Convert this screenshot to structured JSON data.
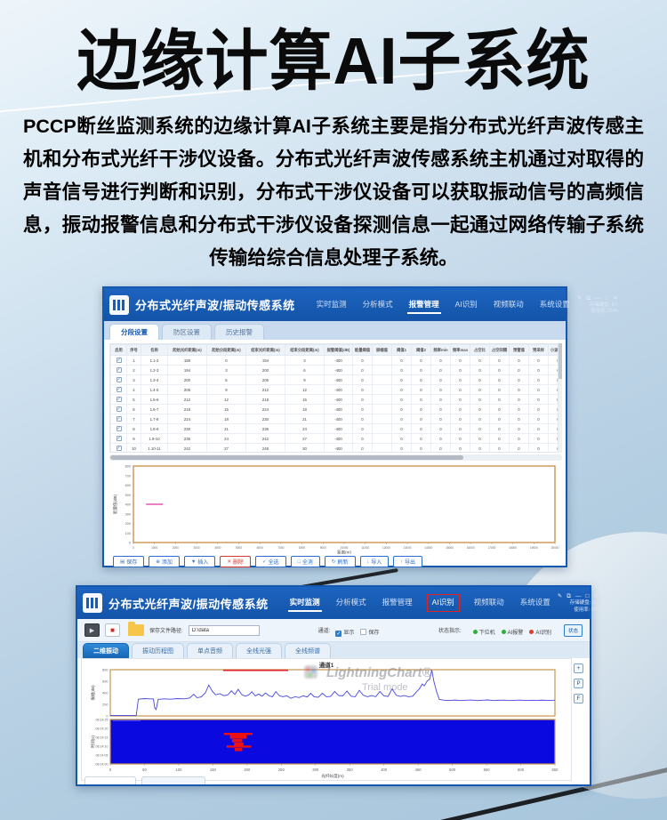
{
  "page": {
    "title": "边缘计算AI子系统",
    "paragraph": "PCCP断丝监测系统的边缘计算AI子系统主要是指分布式光纤声波传感主机和分布式光纤干涉仪设备。分布式光纤声波传感系统主机通过对取得的声音信号进行判断和识别，分布式干涉仪设备可以获取振动信号的高频信息，振动报警信息和分布式干涉仪设备探测信息一起通过网络传输子系统传输给综合信息处理子系统。"
  },
  "window_controls": [
    "✎",
    "⧉",
    "—",
    "□",
    "✕"
  ],
  "window1": {
    "app_title": "分布式光纤声波/振动传感系统",
    "nav": {
      "items": [
        "实时监测",
        "分析模式",
        "报警管理",
        "AI识别",
        "视频联动",
        "系统设置"
      ],
      "active_index": 2
    },
    "storage": {
      "disk_label": "存储硬盘:",
      "disk_value": "D:\\",
      "usage_label": "使用率:",
      "usage_value": "29%"
    },
    "tabs": {
      "items": [
        "分段设置",
        "防区设置",
        "历史报警"
      ],
      "active_index": 0
    },
    "table": {
      "headers": [
        "启用",
        "序号",
        "名称",
        "起始光纤距离(m)",
        "起始分段距离(m)",
        "结束光纤距离(m)",
        "结束分段距离(m)",
        "报警阈值(dB)",
        "能量阈值",
        "振幅值",
        "阈值1",
        "阈值2",
        "频率min",
        "频率max",
        "占空比",
        "占空间隔",
        "预警值",
        "预采样",
        "小波阈值"
      ],
      "rows": [
        [
          "1",
          "1.1-2",
          "188",
          "0",
          "194",
          "3",
          "-400",
          "0",
          "",
          "0",
          "0",
          "0",
          "0",
          "0",
          "0",
          "0",
          "0",
          "0"
        ],
        [
          "2",
          "1.2-3",
          "194",
          "3",
          "200",
          "6",
          "-400",
          "0",
          "",
          "0",
          "0",
          "0",
          "0",
          "0",
          "0",
          "0",
          "0",
          "0"
        ],
        [
          "3",
          "1.3-4",
          "200",
          "6",
          "206",
          "9",
          "-400",
          "0",
          "",
          "0",
          "0",
          "0",
          "0",
          "0",
          "0",
          "0",
          "0",
          "0"
        ],
        [
          "4",
          "1.4-5",
          "206",
          "9",
          "212",
          "12",
          "-400",
          "0",
          "",
          "0",
          "0",
          "0",
          "0",
          "0",
          "0",
          "0",
          "0",
          "0"
        ],
        [
          "5",
          "1.5-6",
          "212",
          "12",
          "218",
          "15",
          "-400",
          "0",
          "",
          "0",
          "0",
          "0",
          "0",
          "0",
          "0",
          "0",
          "0",
          "0"
        ],
        [
          "6",
          "1.6-7",
          "218",
          "15",
          "224",
          "18",
          "-400",
          "0",
          "",
          "0",
          "0",
          "0",
          "0",
          "0",
          "0",
          "0",
          "0",
          "0"
        ],
        [
          "7",
          "1.7-8",
          "224",
          "18",
          "230",
          "21",
          "-400",
          "0",
          "",
          "0",
          "0",
          "0",
          "0",
          "0",
          "0",
          "0",
          "0",
          "0"
        ],
        [
          "8",
          "1.8-9",
          "230",
          "21",
          "236",
          "24",
          "-400",
          "0",
          "",
          "0",
          "0",
          "0",
          "0",
          "0",
          "0",
          "0",
          "0",
          "0"
        ],
        [
          "9",
          "1.9-10",
          "236",
          "24",
          "242",
          "27",
          "-400",
          "0",
          "",
          "0",
          "0",
          "0",
          "0",
          "0",
          "0",
          "0",
          "0",
          "0"
        ],
        [
          "10",
          "1.10-11",
          "242",
          "27",
          "248",
          "30",
          "-400",
          "0",
          "",
          "0",
          "0",
          "0",
          "0",
          "0",
          "0",
          "0",
          "0",
          "0"
        ]
      ]
    },
    "buttons": [
      {
        "label": "保存",
        "icon": "▤",
        "danger": false
      },
      {
        "label": "添加",
        "icon": "⊕",
        "danger": false
      },
      {
        "label": "插入",
        "icon": "▼",
        "danger": false
      },
      {
        "label": "删除",
        "icon": "✕",
        "danger": true
      },
      {
        "label": "全选",
        "icon": "✓",
        "danger": false
      },
      {
        "label": "全消",
        "icon": "□",
        "danger": false
      },
      {
        "label": "刷新",
        "icon": "↻",
        "danger": false
      },
      {
        "label": "导入",
        "icon": "↓",
        "danger": false
      },
      {
        "label": "导出",
        "icon": "↑",
        "danger": false
      }
    ]
  },
  "window2": {
    "app_title": "分布式光纤声波/振动传感系统",
    "nav": {
      "items": [
        "实时监测",
        "分析模式",
        "报警管理",
        "AI识别",
        "视频联动",
        "系统设置"
      ],
      "active_index": 0,
      "boxed_index": 3
    },
    "storage": {
      "disk_label": "存储硬盘:",
      "disk_value": "D:\\",
      "usage_label": "使用率:",
      "usage_value": "5%"
    },
    "toolbar": {
      "path_label": "保存文件路径:",
      "path_value": "D:\\data",
      "channel_label": "通道:",
      "checkboxes": [
        {
          "label": "显示",
          "checked": true
        },
        {
          "label": "保存",
          "checked": false
        }
      ],
      "status_label": "状态指示:",
      "indicators": [
        {
          "label": "下位机",
          "color": "#2fae3c"
        },
        {
          "label": "AI报警",
          "color": "#2fae3c"
        },
        {
          "label": "AI识别",
          "color": "#e03b2f"
        }
      ],
      "status_button": "状态"
    },
    "tabs": {
      "items": [
        "二维振动",
        "振动历程图",
        "单点音频",
        "全线光强",
        "全线频谱"
      ],
      "active_index": 0
    },
    "side_buttons": [
      "+",
      "P",
      "F"
    ],
    "watermark": {
      "line1": "LightningChart®",
      "line2": "Trial mode"
    }
  },
  "chart_data": [
    {
      "type": "line",
      "name": "w1-threshold-chart",
      "title": "",
      "xlabel": "距离(m)",
      "ylabel": "能量值(dB)",
      "xlim": [
        0,
        20000
      ],
      "xtick_step": 1000,
      "ylim": [
        0,
        800
      ],
      "ytick_step": 100,
      "grid": false,
      "frame_color": "#c9964f",
      "series": [
        {
          "name": "阈值标记",
          "color": "#e0359b",
          "points": [
            [
              600,
              400
            ],
            [
              1400,
              400
            ]
          ]
        }
      ]
    },
    {
      "type": "line",
      "name": "w2-vibration-wave",
      "title": "通道1",
      "xlabel": "",
      "ylabel": "振幅(dB)",
      "xlim": [
        0,
        650
      ],
      "ylim": [
        0,
        800
      ],
      "ytick_step": 200,
      "grid": false,
      "frame_color": "#c9964f",
      "series": [
        {
          "name": "振动波形",
          "color": "#4646e0",
          "points": [
            [
              0,
              8
            ],
            [
              30,
              8
            ],
            [
              38,
              8
            ],
            [
              41,
              290
            ],
            [
              50,
              300
            ],
            [
              58,
              295
            ],
            [
              63,
              295
            ],
            [
              65,
              140
            ],
            [
              67,
              110
            ],
            [
              70,
              285
            ],
            [
              78,
              295
            ],
            [
              88,
              290
            ],
            [
              98,
              300
            ],
            [
              108,
              295
            ],
            [
              116,
              310
            ],
            [
              122,
              375
            ],
            [
              127,
              315
            ],
            [
              133,
              330
            ],
            [
              139,
              400
            ],
            [
              144,
              535
            ],
            [
              149,
              430
            ],
            [
              154,
              365
            ],
            [
              160,
              385
            ],
            [
              166,
              350
            ],
            [
              172,
              365
            ],
            [
              177,
              435
            ],
            [
              182,
              372
            ],
            [
              187,
              460
            ],
            [
              192,
              372
            ],
            [
              197,
              342
            ],
            [
              202,
              360
            ],
            [
              207,
              418
            ],
            [
              212,
              348
            ],
            [
              217,
              378
            ],
            [
              222,
              342
            ],
            [
              227,
              398
            ],
            [
              232,
              348
            ],
            [
              237,
              332
            ],
            [
              242,
              422
            ],
            [
              247,
              352
            ],
            [
              252,
              332
            ],
            [
              258,
              348
            ],
            [
              264,
              305
            ],
            [
              270,
              332
            ],
            [
              276,
              318
            ],
            [
              282,
              348
            ],
            [
              288,
              328
            ],
            [
              293,
              392
            ],
            [
              298,
              332
            ],
            [
              304,
              322
            ],
            [
              310,
              392
            ],
            [
              316,
              332
            ],
            [
              322,
              338
            ],
            [
              328,
              422
            ],
            [
              334,
              352
            ],
            [
              340,
              348
            ],
            [
              346,
              432
            ],
            [
              352,
              342
            ],
            [
              358,
              332
            ],
            [
              364,
              442
            ],
            [
              370,
              357
            ],
            [
              376,
              332
            ],
            [
              382,
              352
            ],
            [
              388,
              332
            ],
            [
              394,
              422
            ],
            [
              400,
              347
            ],
            [
              406,
              337
            ],
            [
              412,
              468
            ],
            [
              418,
              357
            ],
            [
              424,
              337
            ],
            [
              430,
              352
            ],
            [
              436,
              332
            ],
            [
              442,
              342
            ],
            [
              448,
              422
            ],
            [
              452,
              470
            ],
            [
              456,
              552
            ],
            [
              459,
              520
            ],
            [
              463,
              600
            ],
            [
              467,
              640
            ],
            [
              470,
              795
            ],
            [
              473,
              600
            ],
            [
              477,
              420
            ],
            [
              481,
              285
            ],
            [
              488,
              272
            ],
            [
              496,
              268
            ],
            [
              504,
              275
            ],
            [
              512,
              266
            ],
            [
              520,
              272
            ],
            [
              528,
              276
            ],
            [
              536,
              266
            ],
            [
              544,
              272
            ],
            [
              552,
              277
            ],
            [
              560,
              266
            ],
            [
              568,
              271
            ],
            [
              576,
              274
            ],
            [
              584,
              267
            ],
            [
              592,
              272
            ],
            [
              600,
              274
            ],
            [
              608,
              268
            ],
            [
              616,
              272
            ],
            [
              624,
              270
            ],
            [
              632,
              273
            ],
            [
              641,
              268
            ],
            [
              650,
              272
            ]
          ]
        },
        {
          "name": "报警线",
          "color": "#e02222",
          "points": [
            [
              165,
              790
            ],
            [
              260,
              790
            ]
          ]
        }
      ]
    },
    {
      "type": "heatmap",
      "name": "w2-waterfall",
      "xlabel": "光纤长度(m)",
      "ylabel": "时间(s)",
      "xlim": [
        0,
        650
      ],
      "xtick_step": 50,
      "time_labels": [
        "08:14:25",
        "08:14:20",
        "08:14:15",
        "08:14:10",
        "08:14:05",
        "08:14:00"
      ],
      "bg_color": "#0a0ae0",
      "event_color": "#ee1010",
      "frame_color": "#c9964f",
      "events": [
        {
          "x": 166,
          "w": 42,
          "t": 17.5,
          "th": 1.2
        },
        {
          "x": 175,
          "w": 24,
          "t": 16.8,
          "th": 2.6
        },
        {
          "x": 178,
          "w": 15,
          "t": 14.0,
          "th": 1.8
        },
        {
          "x": 181,
          "w": 14,
          "t": 12.0,
          "th": 2.6
        },
        {
          "x": 170,
          "w": 36,
          "t": 10.4,
          "th": 1.2
        },
        {
          "x": 182,
          "w": 11,
          "t": 9.0,
          "th": 1.8
        }
      ]
    }
  ]
}
